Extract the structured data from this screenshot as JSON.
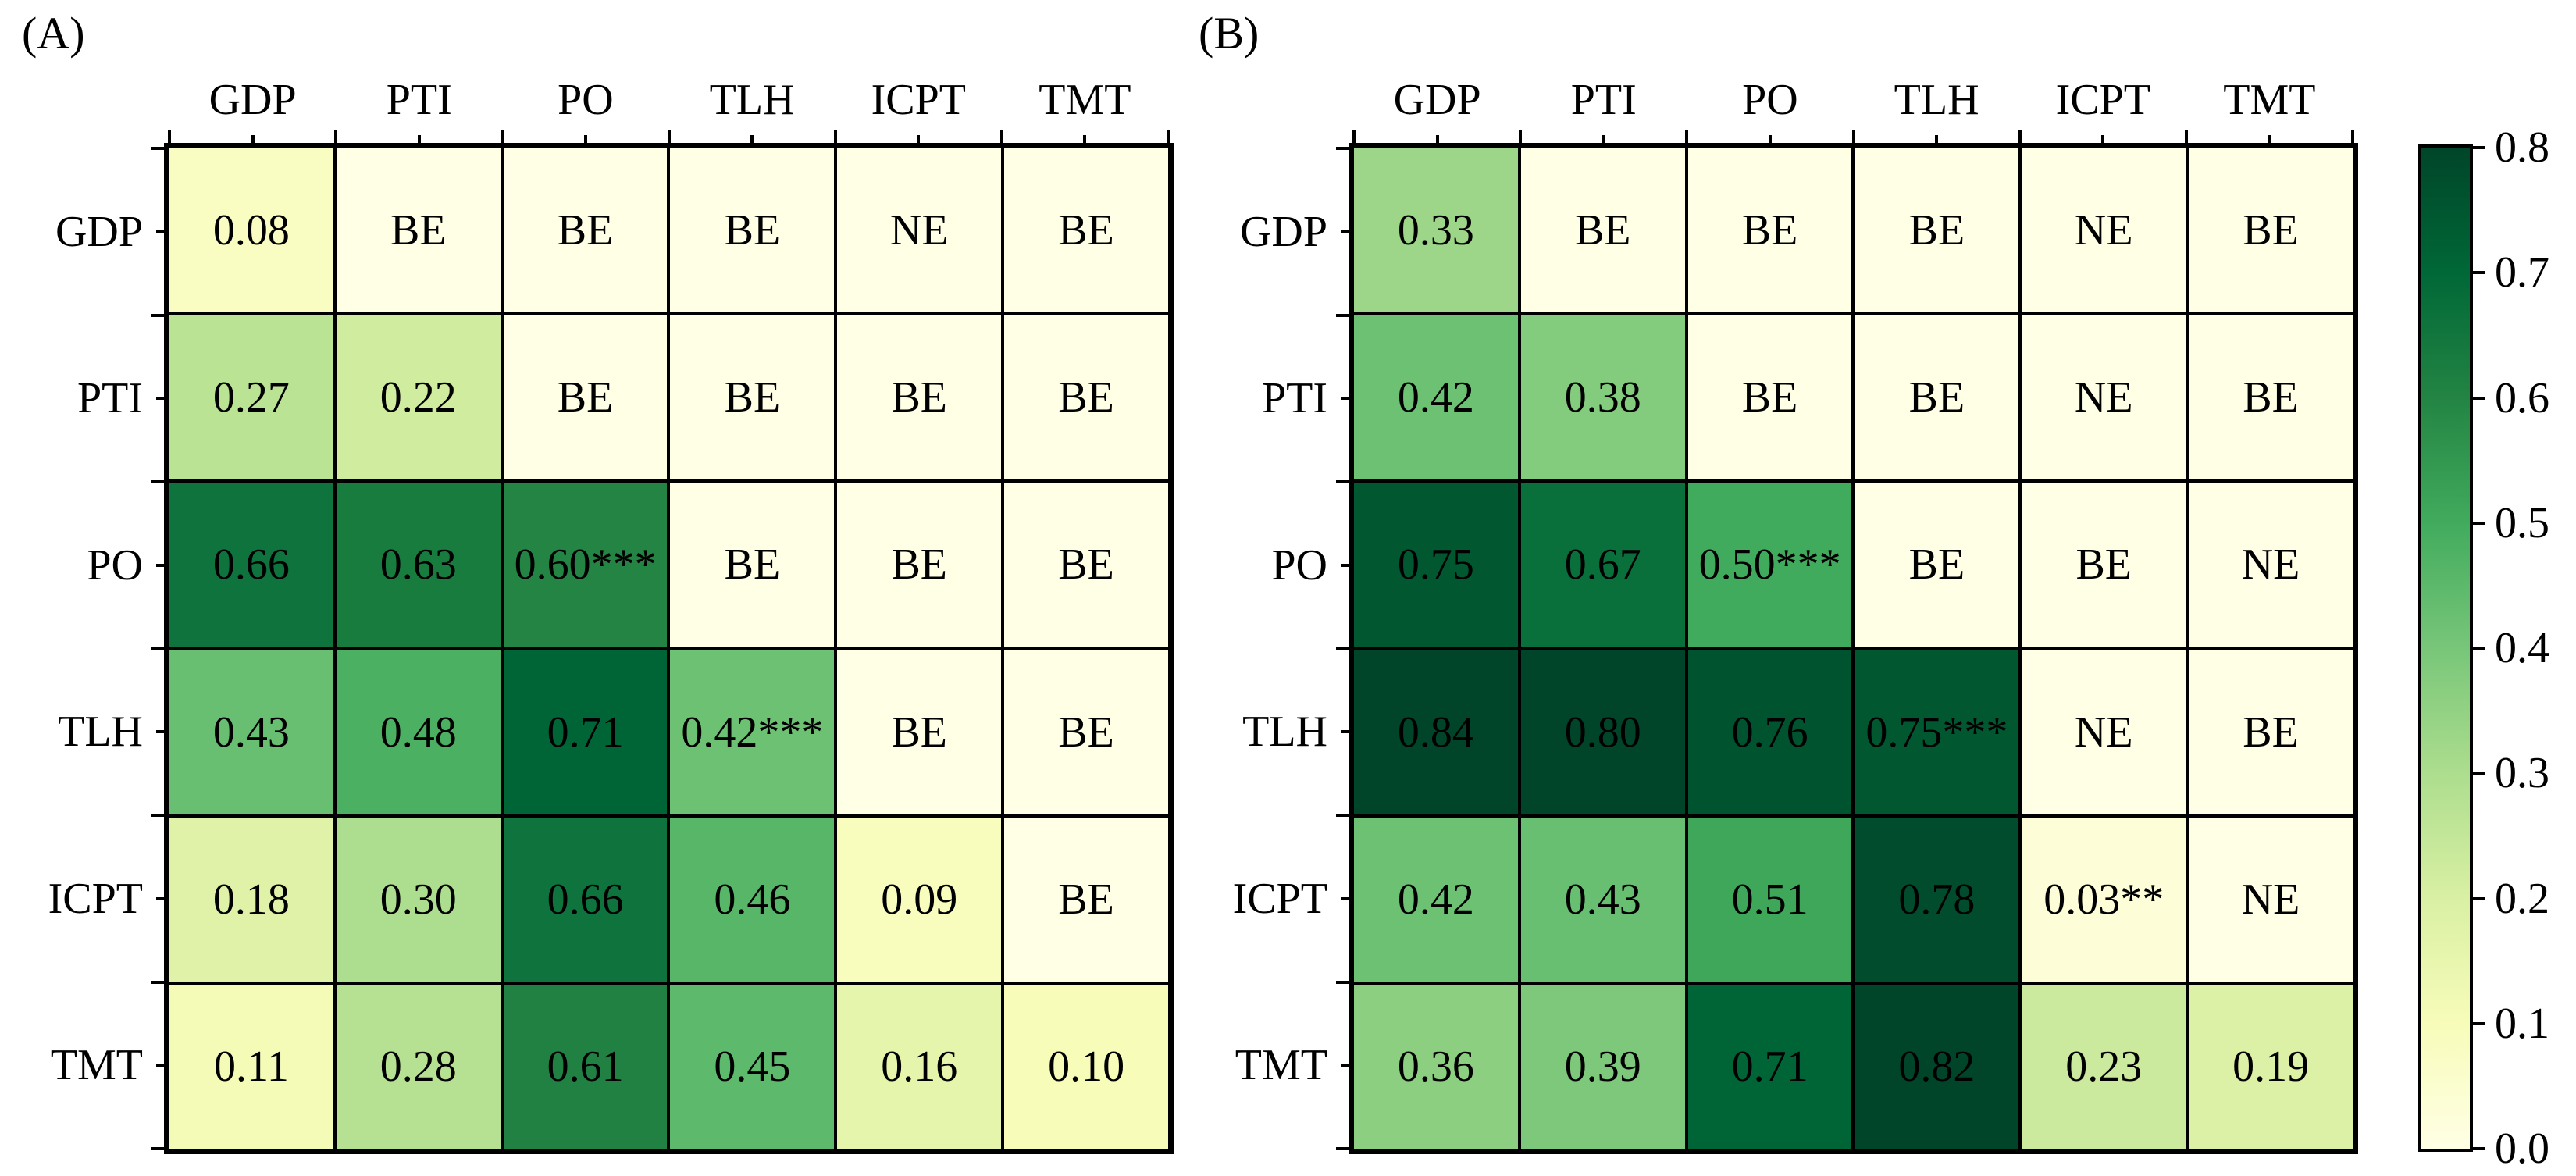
{
  "figure": {
    "background": "#ffffff",
    "text_color": "#000000",
    "grid_line_color": "#000000"
  },
  "chart_data": [
    {
      "type": "heatmap",
      "panel_label": "(A)",
      "x_labels": [
        "GDP",
        "PTI",
        "PO",
        "TLH",
        "ICPT",
        "TMT"
      ],
      "y_labels": [
        "GDP",
        "PTI",
        "PO",
        "TLH",
        "ICPT",
        "TMT"
      ],
      "vmin": 0.0,
      "vmax": 0.8,
      "colormap": "YlGn",
      "legend_position": "right",
      "cells": [
        [
          {
            "label": "0.08",
            "value": 0.08
          },
          {
            "label": "BE",
            "value": 0
          },
          {
            "label": "BE",
            "value": 0
          },
          {
            "label": "BE",
            "value": 0
          },
          {
            "label": "NE",
            "value": 0
          },
          {
            "label": "BE",
            "value": 0
          }
        ],
        [
          {
            "label": "0.27",
            "value": 0.27
          },
          {
            "label": "0.22",
            "value": 0.22
          },
          {
            "label": "BE",
            "value": 0
          },
          {
            "label": "BE",
            "value": 0
          },
          {
            "label": "BE",
            "value": 0
          },
          {
            "label": "BE",
            "value": 0
          }
        ],
        [
          {
            "label": "0.66",
            "value": 0.66
          },
          {
            "label": "0.63",
            "value": 0.63
          },
          {
            "label": "0.60***",
            "value": 0.6
          },
          {
            "label": "BE",
            "value": 0
          },
          {
            "label": "BE",
            "value": 0
          },
          {
            "label": "BE",
            "value": 0
          }
        ],
        [
          {
            "label": "0.43",
            "value": 0.43
          },
          {
            "label": "0.48",
            "value": 0.48
          },
          {
            "label": "0.71",
            "value": 0.71
          },
          {
            "label": "0.42***",
            "value": 0.42
          },
          {
            "label": "BE",
            "value": 0
          },
          {
            "label": "BE",
            "value": 0
          }
        ],
        [
          {
            "label": "0.18",
            "value": 0.18
          },
          {
            "label": "0.30",
            "value": 0.3
          },
          {
            "label": "0.66",
            "value": 0.66
          },
          {
            "label": "0.46",
            "value": 0.46
          },
          {
            "label": "0.09",
            "value": 0.09
          },
          {
            "label": "BE",
            "value": 0
          }
        ],
        [
          {
            "label": "0.11",
            "value": 0.11
          },
          {
            "label": "0.28",
            "value": 0.28
          },
          {
            "label": "0.61",
            "value": 0.61
          },
          {
            "label": "0.45",
            "value": 0.45
          },
          {
            "label": "0.16",
            "value": 0.16
          },
          {
            "label": "0.10",
            "value": 0.1
          }
        ]
      ]
    },
    {
      "type": "heatmap",
      "panel_label": "(B)",
      "x_labels": [
        "GDP",
        "PTI",
        "PO",
        "TLH",
        "ICPT",
        "TMT"
      ],
      "y_labels": [
        "GDP",
        "PTI",
        "PO",
        "TLH",
        "ICPT",
        "TMT"
      ],
      "vmin": 0.0,
      "vmax": 0.8,
      "colormap": "YlGn",
      "legend_position": "right",
      "cells": [
        [
          {
            "label": "0.33",
            "value": 0.33
          },
          {
            "label": "BE",
            "value": 0
          },
          {
            "label": "BE",
            "value": 0
          },
          {
            "label": "BE",
            "value": 0
          },
          {
            "label": "NE",
            "value": 0
          },
          {
            "label": "BE",
            "value": 0
          }
        ],
        [
          {
            "label": "0.42",
            "value": 0.42
          },
          {
            "label": "0.38",
            "value": 0.38
          },
          {
            "label": "BE",
            "value": 0
          },
          {
            "label": "BE",
            "value": 0
          },
          {
            "label": "NE",
            "value": 0
          },
          {
            "label": "BE",
            "value": 0
          }
        ],
        [
          {
            "label": "0.75",
            "value": 0.75
          },
          {
            "label": "0.67",
            "value": 0.67
          },
          {
            "label": "0.50***",
            "value": 0.5
          },
          {
            "label": "BE",
            "value": 0
          },
          {
            "label": "BE",
            "value": 0
          },
          {
            "label": "NE",
            "value": 0
          }
        ],
        [
          {
            "label": "0.84",
            "value": 0.84
          },
          {
            "label": "0.80",
            "value": 0.8
          },
          {
            "label": "0.76",
            "value": 0.76
          },
          {
            "label": "0.75***",
            "value": 0.75
          },
          {
            "label": "NE",
            "value": 0
          },
          {
            "label": "BE",
            "value": 0
          }
        ],
        [
          {
            "label": "0.42",
            "value": 0.42
          },
          {
            "label": "0.43",
            "value": 0.43
          },
          {
            "label": "0.51",
            "value": 0.51
          },
          {
            "label": "0.78",
            "value": 0.78
          },
          {
            "label": "0.03**",
            "value": 0.03
          },
          {
            "label": "NE",
            "value": 0
          }
        ],
        [
          {
            "label": "0.36",
            "value": 0.36
          },
          {
            "label": "0.39",
            "value": 0.39
          },
          {
            "label": "0.71",
            "value": 0.71
          },
          {
            "label": "0.82",
            "value": 0.82
          },
          {
            "label": "0.23",
            "value": 0.23
          },
          {
            "label": "0.19",
            "value": 0.19
          }
        ]
      ]
    }
  ],
  "colorbar": {
    "tick_labels_top_to_bottom": [
      "0.8",
      "0.7",
      "0.6",
      "0.5",
      "0.4",
      "0.3",
      "0.2",
      "0.1",
      "0.0"
    ],
    "gradient_stops_bottom_to_top": [
      "#ffffe5",
      "#f7fcb9",
      "#d9f0a3",
      "#addd8e",
      "#78c679",
      "#41ab5d",
      "#238443",
      "#006837",
      "#004529"
    ]
  }
}
